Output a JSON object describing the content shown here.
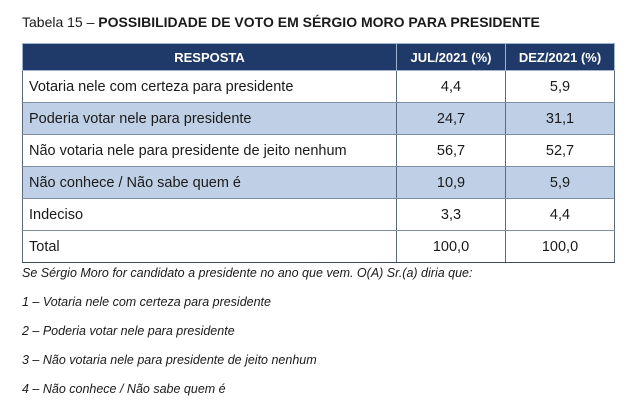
{
  "caption": {
    "prefix": "Tabela 15 – ",
    "title": "POSSIBILIDADE DE VOTO EM SÉRGIO MORO PARA PRESIDENTE"
  },
  "table": {
    "headers": [
      "RESPOSTA",
      "JUL/2021 (%)",
      "DEZ/2021 (%)"
    ],
    "rows": [
      {
        "label": "Votaria nele com certeza para presidente",
        "jul": "4,4",
        "dez": "5,9"
      },
      {
        "label": "Poderia votar nele para presidente",
        "jul": "24,7",
        "dez": "31,1"
      },
      {
        "label": "Não votaria nele para presidente de jeito nenhum",
        "jul": "56,7",
        "dez": "52,7"
      },
      {
        "label": "Não conhece / Não sabe quem é",
        "jul": "10,9",
        "dez": "5,9"
      },
      {
        "label": "Indeciso",
        "jul": "3,3",
        "dez": "4,4"
      },
      {
        "label": "Total",
        "jul": "100,0",
        "dez": "100,0"
      }
    ],
    "header_color": "#1f3a68",
    "shade_color": "#bfd0e6"
  },
  "notes": [
    "Se Sérgio Moro for candidato a presidente no ano que vem. O(A) Sr.(a) diria que:",
    "1 – Votaria nele com certeza para presidente",
    "2 – Poderia votar nele para presidente",
    "3 – Não votaria nele para presidente de jeito nenhum",
    "4 – Não conhece / Não sabe quem é"
  ]
}
